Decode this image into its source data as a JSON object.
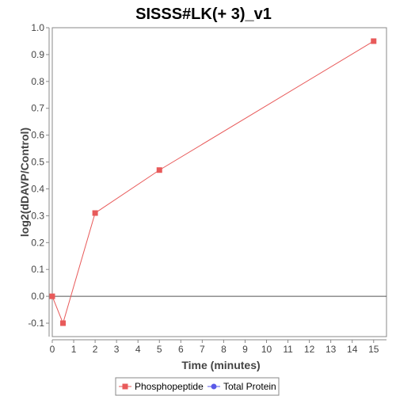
{
  "chart_data": {
    "type": "line",
    "title": "SISSS#LK(+ 3)_v1",
    "xlabel": "Time (minutes)",
    "ylabel": "log2(dDAVP/Control)",
    "xlim": [
      0,
      15.6
    ],
    "ylim": [
      -0.15,
      1.0
    ],
    "x_ticks": [
      0,
      1,
      2,
      3,
      4,
      5,
      6,
      7,
      8,
      9,
      10,
      11,
      12,
      13,
      14,
      15
    ],
    "y_ticks": [
      -0.1,
      0.0,
      0.1,
      0.2,
      0.3,
      0.4,
      0.5,
      0.6,
      0.7,
      0.8,
      0.9,
      1.0
    ],
    "y_tick_labels": [
      "-0.1",
      "0.0",
      "0.1",
      "0.2",
      "0.3",
      "0.4",
      "0.5",
      "0.6",
      "0.7",
      "0.8",
      "0.9",
      "1.0"
    ],
    "zero_line": true,
    "grid": false,
    "legend_position": "bottom-center",
    "series": [
      {
        "name": "Phosphopeptide",
        "color": "#e85a5a",
        "marker": "square",
        "x": [
          0,
          0.5,
          2,
          5,
          15
        ],
        "y": [
          0.0,
          -0.1,
          0.31,
          0.47,
          0.95
        ]
      },
      {
        "name": "Total Protein",
        "color": "#5a5ae8",
        "marker": "circle",
        "x": [],
        "y": []
      }
    ]
  }
}
